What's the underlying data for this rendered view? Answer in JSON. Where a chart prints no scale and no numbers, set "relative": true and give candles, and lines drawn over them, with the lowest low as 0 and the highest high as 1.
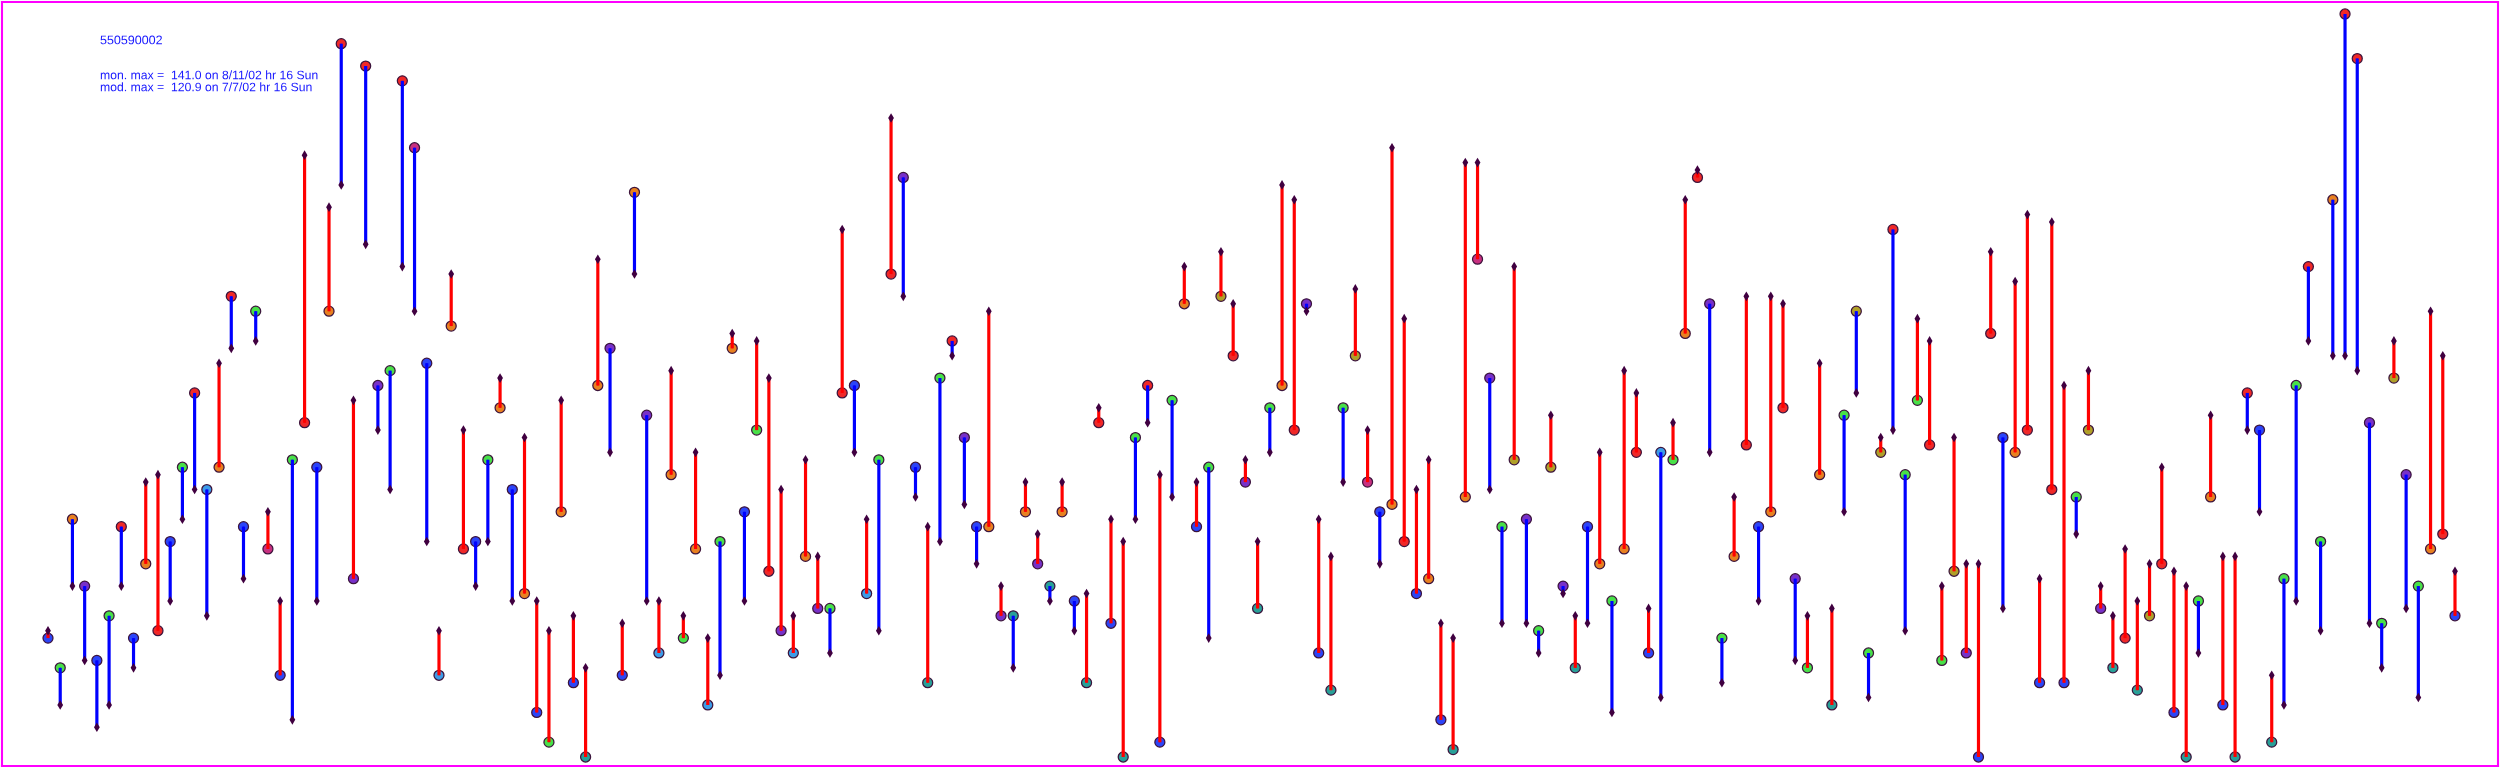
{
  "chart_data": {
    "type": "candlestick",
    "title": "550590002",
    "annotations": [
      "mon. max =  141.0 on 8/11/02 hr 16 Sun",
      "mod. max =  120.9 on 7/7/02 hr 16 Sun"
    ],
    "relative": true,
    "categories": [
      null,
      null,
      null,
      null,
      null,
      null,
      null,
      null,
      null,
      null,
      null,
      null,
      null,
      null,
      null,
      null,
      null,
      null,
      null,
      null,
      null,
      null,
      null,
      null,
      null,
      null,
      null,
      null,
      null,
      null,
      null,
      null,
      null,
      null,
      null,
      null,
      null,
      null,
      null,
      null,
      null,
      null,
      null,
      null,
      null,
      null,
      null,
      null,
      null,
      null,
      null,
      null,
      null,
      null,
      null,
      null,
      null,
      null,
      null,
      null,
      null,
      null,
      null,
      null,
      null,
      null,
      null,
      null,
      null,
      null,
      null,
      null,
      null,
      null,
      null,
      null,
      null,
      null,
      null,
      null,
      null,
      null,
      null,
      null,
      null,
      null,
      null,
      null,
      null,
      null,
      null,
      null,
      null,
      null,
      null,
      null,
      null,
      null,
      null,
      null,
      null,
      null,
      null,
      null,
      null,
      null,
      null,
      null,
      null,
      null,
      null,
      null,
      null,
      null,
      null,
      null,
      null,
      null,
      null,
      null,
      null,
      null,
      null,
      null,
      null,
      null,
      null,
      null,
      null,
      null,
      null,
      null,
      null,
      null,
      null,
      null,
      null,
      null,
      null,
      null,
      null,
      null,
      null,
      null,
      null,
      null,
      null,
      null,
      null,
      null,
      null,
      null,
      null,
      null,
      null,
      null,
      null,
      null,
      null,
      null,
      null,
      null,
      null,
      null,
      null,
      null,
      null,
      null,
      null,
      null,
      null,
      null,
      null,
      null,
      null,
      null,
      null,
      null,
      null,
      null,
      null,
      null,
      null,
      null,
      null,
      null,
      null,
      null,
      null,
      null,
      null,
      null,
      null,
      null,
      null,
      null,
      null,
      null
    ],
    "ohlc": [
      [
        0.16,
        0.17,
        0.16,
        0.17
      ],
      [
        0.12,
        0.12,
        0.07,
        0.07
      ],
      [
        0.32,
        0.32,
        0.23,
        0.23
      ],
      [
        0.23,
        0.23,
        0.13,
        0.13
      ],
      [
        0.13,
        0.13,
        0.04,
        0.04
      ],
      [
        0.19,
        0.19,
        0.07,
        0.07
      ],
      [
        0.31,
        0.31,
        0.23,
        0.23
      ],
      [
        0.16,
        0.16,
        0.12,
        0.12
      ],
      [
        0.26,
        0.37,
        0.26,
        0.37
      ],
      [
        0.17,
        0.38,
        0.17,
        0.38
      ],
      [
        0.29,
        0.29,
        0.21,
        0.21
      ],
      [
        0.39,
        0.39,
        0.32,
        0.32
      ],
      [
        0.49,
        0.49,
        0.36,
        0.36
      ],
      [
        0.36,
        0.36,
        0.19,
        0.19
      ],
      [
        0.39,
        0.53,
        0.39,
        0.53
      ],
      [
        0.62,
        0.62,
        0.55,
        0.55
      ],
      [
        0.31,
        0.31,
        0.24,
        0.24
      ],
      [
        0.6,
        0.6,
        0.56,
        0.56
      ],
      [
        0.28,
        0.33,
        0.28,
        0.33
      ],
      [
        0.11,
        0.21,
        0.11,
        0.21
      ],
      [
        0.4,
        0.4,
        0.05,
        0.05
      ],
      [
        0.45,
        0.81,
        0.45,
        0.81
      ],
      [
        0.39,
        0.39,
        0.21,
        0.21
      ],
      [
        0.6,
        0.74,
        0.6,
        0.74
      ],
      [
        0.96,
        0.96,
        0.77,
        0.77
      ],
      [
        0.24,
        0.48,
        0.24,
        0.48
      ],
      [
        0.93,
        0.93,
        0.69,
        0.69
      ],
      [
        0.5,
        0.5,
        0.44,
        0.44
      ],
      [
        0.52,
        0.52,
        0.36,
        0.36
      ],
      [
        0.91,
        0.91,
        0.66,
        0.66
      ],
      [
        0.82,
        0.82,
        0.6,
        0.6
      ],
      [
        0.53,
        0.53,
        0.29,
        0.29
      ],
      [
        0.11,
        0.17,
        0.11,
        0.17
      ],
      [
        0.58,
        0.65,
        0.58,
        0.65
      ],
      [
        0.28,
        0.44,
        0.28,
        0.44
      ],
      [
        0.29,
        0.29,
        0.23,
        0.23
      ],
      [
        0.4,
        0.4,
        0.29,
        0.29
      ],
      [
        0.47,
        0.51,
        0.47,
        0.51
      ],
      [
        0.36,
        0.36,
        0.21,
        0.21
      ],
      [
        0.22,
        0.43,
        0.22,
        0.43
      ],
      [
        0.06,
        0.21,
        0.06,
        0.21
      ],
      [
        0.02,
        0.17,
        0.02,
        0.17
      ],
      [
        0.33,
        0.48,
        0.33,
        0.48
      ],
      [
        0.1,
        0.19,
        0.1,
        0.19
      ],
      [
        0,
        0.12,
        0,
        0.12
      ],
      [
        0.5,
        0.67,
        0.5,
        0.67
      ],
      [
        0.55,
        0.55,
        0.41,
        0.41
      ],
      [
        0.11,
        0.18,
        0.11,
        0.18
      ],
      [
        0.76,
        0.76,
        0.65,
        0.65
      ],
      [
        0.46,
        0.46,
        0.21,
        0.21
      ],
      [
        0.14,
        0.21,
        0.14,
        0.21
      ],
      [
        0.38,
        0.52,
        0.38,
        0.52
      ],
      [
        0.16,
        0.19,
        0.16,
        0.19
      ],
      [
        0.28,
        0.41,
        0.28,
        0.41
      ],
      [
        0.07,
        0.16,
        0.07,
        0.16
      ],
      [
        0.29,
        0.29,
        0.11,
        0.11
      ],
      [
        0.55,
        0.57,
        0.55,
        0.57
      ],
      [
        0.33,
        0.33,
        0.21,
        0.21
      ],
      [
        0.44,
        0.56,
        0.44,
        0.56
      ],
      [
        0.25,
        0.51,
        0.25,
        0.51
      ],
      [
        0.17,
        0.36,
        0.17,
        0.36
      ],
      [
        0.14,
        0.19,
        0.14,
        0.19
      ],
      [
        0.27,
        0.4,
        0.27,
        0.4
      ],
      [
        0.2,
        0.27,
        0.2,
        0.27
      ],
      [
        0.2,
        0.2,
        0.14,
        0.14
      ],
      [
        0.49,
        0.71,
        0.49,
        0.71
      ],
      [
        0.5,
        0.5,
        0.41,
        0.41
      ],
      [
        0.22,
        0.32,
        0.22,
        0.32
      ],
      [
        0.4,
        0.4,
        0.17,
        0.17
      ],
      [
        0.65,
        0.86,
        0.65,
        0.86
      ],
      [
        0.78,
        0.78,
        0.62,
        0.62
      ],
      [
        0.39,
        0.39,
        0.35,
        0.35
      ],
      [
        0.1,
        0.31,
        0.1,
        0.31
      ],
      [
        0.51,
        0.51,
        0.29,
        0.29
      ],
      [
        0.56,
        0.56,
        0.54,
        0.54
      ],
      [
        0.43,
        0.43,
        0.34,
        0.34
      ],
      [
        0.31,
        0.31,
        0.26,
        0.26
      ],
      [
        0.31,
        0.6,
        0.31,
        0.6
      ],
      [
        0.19,
        0.23,
        0.19,
        0.23
      ],
      [
        0.19,
        0.19,
        0.12,
        0.12
      ],
      [
        0.33,
        0.37,
        0.33,
        0.37
      ],
      [
        0.26,
        0.3,
        0.26,
        0.3
      ],
      [
        0.23,
        0.23,
        0.21,
        0.21
      ],
      [
        0.33,
        0.37,
        0.33,
        0.37
      ],
      [
        0.21,
        0.21,
        0.17,
        0.17
      ],
      [
        0.1,
        0.22,
        0.1,
        0.22
      ],
      [
        0.45,
        0.47,
        0.45,
        0.47
      ],
      [
        0.18,
        0.32,
        0.18,
        0.32
      ],
      [
        0,
        0.29,
        0,
        0.29
      ],
      [
        0.43,
        0.43,
        0.32,
        0.32
      ],
      [
        0.5,
        0.5,
        0.45,
        0.45
      ],
      [
        0.02,
        0.38,
        0.02,
        0.38
      ],
      [
        0.48,
        0.48,
        0.35,
        0.35
      ],
      [
        0.61,
        0.66,
        0.61,
        0.66
      ],
      [
        0.31,
        0.37,
        0.31,
        0.37
      ],
      [
        0.39,
        0.39,
        0.16,
        0.16
      ],
      [
        0.62,
        0.68,
        0.62,
        0.68
      ],
      [
        0.54,
        0.61,
        0.54,
        0.61
      ],
      [
        0.37,
        0.4,
        0.37,
        0.4
      ],
      [
        0.2,
        0.29,
        0.2,
        0.29
      ],
      [
        0.47,
        0.47,
        0.41,
        0.41
      ],
      [
        0.5,
        0.77,
        0.5,
        0.77
      ],
      [
        0.44,
        0.75,
        0.44,
        0.75
      ],
      [
        0.61,
        0.61,
        0.6,
        0.6
      ],
      [
        0.14,
        0.32,
        0.14,
        0.32
      ],
      [
        0.09,
        0.27,
        0.09,
        0.27
      ],
      [
        0.47,
        0.47,
        0.37,
        0.37
      ],
      [
        0.54,
        0.63,
        0.54,
        0.63
      ],
      [
        0.37,
        0.44,
        0.37,
        0.44
      ],
      [
        0.33,
        0.33,
        0.26,
        0.26
      ],
      [
        0.34,
        0.82,
        0.34,
        0.82
      ],
      [
        0.29,
        0.59,
        0.29,
        0.59
      ],
      [
        0.22,
        0.36,
        0.22,
        0.36
      ],
      [
        0.24,
        0.4,
        0.24,
        0.4
      ],
      [
        0.05,
        0.18,
        0.05,
        0.18
      ],
      [
        0.01,
        0.16,
        0.01,
        0.16
      ],
      [
        0.35,
        0.8,
        0.35,
        0.8
      ],
      [
        0.67,
        0.8,
        0.67,
        0.8
      ],
      [
        0.51,
        0.51,
        0.36,
        0.36
      ],
      [
        0.31,
        0.31,
        0.18,
        0.18
      ],
      [
        0.4,
        0.66,
        0.4,
        0.66
      ],
      [
        0.32,
        0.32,
        0.18,
        0.18
      ],
      [
        0.17,
        0.17,
        0.14,
        0.14
      ],
      [
        0.39,
        0.46,
        0.39,
        0.46
      ],
      [
        0.23,
        0.23,
        0.22,
        0.22
      ],
      [
        0.12,
        0.19,
        0.12,
        0.19
      ],
      [
        0.31,
        0.31,
        0.18,
        0.18
      ],
      [
        0.26,
        0.41,
        0.26,
        0.41
      ],
      [
        0.21,
        0.21,
        0.06,
        0.06
      ],
      [
        0.28,
        0.52,
        0.28,
        0.52
      ],
      [
        0.41,
        0.49,
        0.41,
        0.49
      ],
      [
        0.14,
        0.2,
        0.14,
        0.2
      ],
      [
        0.41,
        0.41,
        0.08,
        0.08
      ],
      [
        0.4,
        0.45,
        0.4,
        0.45
      ],
      [
        0.57,
        0.75,
        0.57,
        0.75
      ],
      [
        0.78,
        0.79,
        0.78,
        0.79
      ],
      [
        0.61,
        0.61,
        0.41,
        0.41
      ],
      [
        0.16,
        0.16,
        0.1,
        0.1
      ],
      [
        0.27,
        0.35,
        0.27,
        0.35
      ],
      [
        0.42,
        0.62,
        0.42,
        0.62
      ],
      [
        0.31,
        0.31,
        0.21,
        0.21
      ],
      [
        0.33,
        0.62,
        0.33,
        0.62
      ],
      [
        0.47,
        0.61,
        0.47,
        0.61
      ],
      [
        0.24,
        0.24,
        0.13,
        0.13
      ],
      [
        0.12,
        0.19,
        0.12,
        0.19
      ],
      [
        0.38,
        0.53,
        0.38,
        0.53
      ],
      [
        0.07,
        0.2,
        0.07,
        0.2
      ],
      [
        0.46,
        0.46,
        0.33,
        0.33
      ],
      [
        0.6,
        0.6,
        0.49,
        0.49
      ],
      [
        0.14,
        0.14,
        0.08,
        0.08
      ],
      [
        0.41,
        0.43,
        0.41,
        0.43
      ],
      [
        0.71,
        0.71,
        0.44,
        0.44
      ],
      [
        0.38,
        0.38,
        0.17,
        0.17
      ],
      [
        0.48,
        0.59,
        0.48,
        0.59
      ],
      [
        0.42,
        0.56,
        0.42,
        0.56
      ],
      [
        0.13,
        0.23,
        0.13,
        0.23
      ],
      [
        0.25,
        0.43,
        0.25,
        0.43
      ],
      [
        0.14,
        0.26,
        0.14,
        0.26
      ],
      [
        0,
        0.26,
        0,
        0.26
      ],
      [
        0.57,
        0.68,
        0.57,
        0.68
      ],
      [
        0.43,
        0.43,
        0.2,
        0.2
      ],
      [
        0.41,
        0.64,
        0.41,
        0.64
      ],
      [
        0.44,
        0.73,
        0.44,
        0.73
      ],
      [
        0.1,
        0.24,
        0.1,
        0.24
      ],
      [
        0.36,
        0.72,
        0.36,
        0.72
      ],
      [
        0.1,
        0.5,
        0.1,
        0.5
      ],
      [
        0.35,
        0.35,
        0.3,
        0.3
      ],
      [
        0.44,
        0.52,
        0.44,
        0.52
      ],
      [
        0.2,
        0.23,
        0.2,
        0.23
      ],
      [
        0.12,
        0.19,
        0.12,
        0.19
      ],
      [
        0.16,
        0.28,
        0.16,
        0.28
      ],
      [
        0.09,
        0.21,
        0.09,
        0.21
      ],
      [
        0.19,
        0.26,
        0.19,
        0.26
      ],
      [
        0.26,
        0.39,
        0.26,
        0.39
      ],
      [
        0.06,
        0.25,
        0.06,
        0.25
      ],
      [
        0,
        0.23,
        0,
        0.23
      ],
      [
        0.21,
        0.21,
        0.14,
        0.14
      ],
      [
        0.35,
        0.46,
        0.35,
        0.46
      ],
      [
        0.07,
        0.27,
        0.07,
        0.27
      ],
      [
        0,
        0.27,
        0,
        0.27
      ],
      [
        0.49,
        0.49,
        0.44,
        0.44
      ],
      [
        0.44,
        0.44,
        0.33,
        0.33
      ],
      [
        0.02,
        0.11,
        0.02,
        0.11
      ],
      [
        0.24,
        0.24,
        0.07,
        0.07
      ],
      [
        0.5,
        0.5,
        0.21,
        0.21
      ],
      [
        0.66,
        0.66,
        0.56,
        0.56
      ],
      [
        0.29,
        0.29,
        0.17,
        0.17
      ],
      [
        0.75,
        0.75,
        0.54,
        0.54
      ],
      [
        1,
        1,
        0.54,
        0.54
      ],
      [
        0.94,
        0.94,
        0.52,
        0.52
      ],
      [
        0.45,
        0.45,
        0.18,
        0.18
      ],
      [
        0.18,
        0.18,
        0.12,
        0.12
      ],
      [
        0.51,
        0.56,
        0.51,
        0.56
      ],
      [
        0.38,
        0.38,
        0.2,
        0.2
      ],
      [
        0.23,
        0.23,
        0.08,
        0.08
      ],
      [
        0.28,
        0.6,
        0.28,
        0.6
      ],
      [
        0.3,
        0.54,
        0.3,
        0.54
      ],
      [
        0.19,
        0.25,
        0.19,
        0.25
      ]
    ],
    "colors": [
      "#ff0000",
      "#0000ff",
      "#0000ff",
      "#0000ff",
      "#0000ff",
      "#0000ff",
      "#0000ff",
      "#0000ff",
      "#ff0000",
      "#ff0000",
      "#0000ff",
      "#0000ff",
      "#0000ff",
      "#0000ff",
      "#ff0000",
      "#0000ff",
      "#0000ff",
      "#0000ff",
      "#ff0000",
      "#ff0000",
      "#0000ff",
      "#ff0000",
      "#0000ff",
      "#ff0000",
      "#0000ff",
      "#ff0000",
      "#0000ff",
      "#0000ff",
      "#0000ff",
      "#0000ff",
      "#0000ff",
      "#0000ff",
      "#ff0000",
      "#ff0000",
      "#ff0000",
      "#0000ff",
      "#0000ff",
      "#ff0000",
      "#0000ff",
      "#ff0000",
      "#ff0000",
      "#ff0000",
      "#ff0000",
      "#ff0000",
      "#ff0000",
      "#ff0000",
      "#0000ff",
      "#ff0000",
      "#0000ff",
      "#0000ff",
      "#ff0000",
      "#ff0000",
      "#ff0000",
      "#ff0000",
      "#ff0000",
      "#0000ff",
      "#ff0000",
      "#0000ff",
      "#ff0000",
      "#ff0000",
      "#ff0000",
      "#ff0000",
      "#ff0000",
      "#ff0000",
      "#0000ff",
      "#ff0000",
      "#0000ff",
      "#ff0000",
      "#0000ff",
      "#ff0000",
      "#0000ff",
      "#0000ff",
      "#ff0000",
      "#0000ff",
      "#0000ff",
      "#0000ff",
      "#0000ff",
      "#ff0000",
      "#ff0000",
      "#0000ff",
      "#ff0000",
      "#ff0000",
      "#0000ff",
      "#ff0000",
      "#0000ff",
      "#ff0000",
      "#ff0000",
      "#ff0000",
      "#ff0000",
      "#0000ff",
      "#0000ff",
      "#ff0000",
      "#0000ff",
      "#ff0000",
      "#ff0000",
      "#0000ff",
      "#ff0000",
      "#ff0000",
      "#ff0000",
      "#ff0000",
      "#0000ff",
      "#ff0000",
      "#ff0000",
      "#0000ff",
      "#ff0000",
      "#ff0000",
      "#0000ff",
      "#ff0000",
      "#ff0000",
      "#0000ff",
      "#ff0000",
      "#ff0000",
      "#ff0000",
      "#ff0000",
      "#ff0000",
      "#ff0000",
      "#ff0000",
      "#ff0000",
      "#0000ff",
      "#0000ff",
      "#ff0000",
      "#0000ff",
      "#0000ff",
      "#ff0000",
      "#0000ff",
      "#ff0000",
      "#0000ff",
      "#ff0000",
      "#0000ff",
      "#ff0000",
      "#ff0000",
      "#ff0000",
      "#0000ff",
      "#ff0000",
      "#ff0000",
      "#ff0000",
      "#0000ff",
      "#0000ff",
      "#ff0000",
      "#ff0000",
      "#0000ff",
      "#ff0000",
      "#ff0000",
      "#0000ff",
      "#ff0000",
      "#ff0000",
      "#ff0000",
      "#0000ff",
      "#0000ff",
      "#0000ff",
      "#ff0000",
      "#0000ff",
      "#0000ff",
      "#ff0000",
      "#ff0000",
      "#ff0000",
      "#ff0000",
      "#ff0000",
      "#ff0000",
      "#ff0000",
      "#0000ff",
      "#ff0000",
      "#ff0000",
      "#ff0000",
      "#ff0000",
      "#ff0000",
      "#0000ff",
      "#ff0000",
      "#ff0000",
      "#ff0000",
      "#ff0000",
      "#ff0000",
      "#ff0000",
      "#ff0000",
      "#ff0000",
      "#ff0000",
      "#0000ff",
      "#ff0000",
      "#ff0000",
      "#ff0000",
      "#0000ff",
      "#0000ff",
      "#ff0000",
      "#0000ff",
      "#0000ff",
      "#0000ff",
      "#0000ff",
      "#0000ff",
      "#0000ff",
      "#0000ff",
      "#0000ff",
      "#0000ff",
      "#ff0000",
      "#0000ff",
      "#0000ff",
      "#ff0000",
      "#ff0000",
      "#ff0000"
    ],
    "series": [
      {
        "type": "scatter",
        "marker": "circle",
        "values": [
          0.16,
          0.12,
          0.32,
          0.23,
          0.13,
          0.19,
          0.31,
          0.16,
          0.26,
          0.17,
          0.29,
          0.39,
          0.49,
          0.36,
          0.39,
          0.62,
          0.31,
          0.6,
          0.28,
          0.11,
          0.4,
          0.45,
          0.39,
          0.6,
          0.96,
          0.24,
          0.93,
          0.5,
          0.52,
          0.91,
          0.82,
          0.53,
          0.11,
          0.58,
          0.28,
          0.29,
          0.4,
          0.47,
          0.36,
          0.22,
          0.06,
          0.02,
          0.33,
          0.1,
          0,
          0.5,
          0.55,
          0.11,
          0.76,
          0.46,
          0.14,
          0.38,
          0.16,
          0.28,
          0.07,
          0.29,
          0.55,
          0.33,
          0.44,
          0.25,
          0.17,
          0.14,
          0.27,
          0.2,
          0.2,
          0.49,
          0.5,
          0.22,
          0.4,
          0.65,
          0.78,
          0.39,
          0.1,
          0.51,
          0.56,
          0.43,
          0.31,
          0.31,
          0.19,
          0.19,
          0.33,
          0.26,
          0.23,
          0.33,
          0.21,
          0.1,
          0.45,
          0.18,
          0,
          0.43,
          0.5,
          0.02,
          0.48,
          0.61,
          0.31,
          0.39,
          0.62,
          0.54,
          0.37,
          0.2,
          0.47,
          0.5,
          0.44,
          0.61,
          0.14,
          0.09,
          0.47,
          0.54,
          0.37,
          0.33,
          0.34,
          0.29,
          0.22,
          0.24,
          0.05,
          0.01,
          0.35,
          0.67,
          0.51,
          0.31,
          0.4,
          0.32,
          0.17,
          0.39,
          0.23,
          0.12,
          0.31,
          0.26,
          0.21,
          0.28,
          0.41,
          0.14,
          0.41,
          0.4,
          0.57,
          0.78,
          0.61,
          0.16,
          0.27,
          0.42,
          0.31,
          0.33,
          0.47,
          0.24,
          0.12,
          0.38,
          0.07,
          0.46,
          0.6,
          0.14,
          0.41,
          0.71,
          0.38,
          0.48,
          0.42,
          0.13,
          0.25,
          0.14,
          0,
          0.57,
          0.43,
          0.41,
          0.44,
          0.1,
          0.36,
          0.1,
          0.35,
          0.44,
          0.2,
          0.12,
          0.16,
          0.09,
          0.19,
          0.26,
          0.06,
          0,
          0.21,
          0.35,
          0.07,
          0,
          0.49,
          0.44,
          0.02,
          0.24,
          0.5,
          0.66,
          0.29,
          0.75,
          1,
          0.94,
          0.45,
          0.18,
          0.51,
          0.38,
          0.23,
          0.28,
          0.3,
          0.19
        ],
        "colors": [
          "#2c44f8",
          "#48e048",
          "#e88020",
          "#7830c8",
          "#2c44f8",
          "#48e048",
          "#f02828",
          "#2c44f8",
          "#e88020",
          "#f02828",
          "#2c44f8",
          "#48e048",
          "#f02828",
          "#3c9ce8",
          "#e88020",
          "#f02828",
          "#2c44f8",
          "#48e048",
          "#c83080",
          "#2c44f8",
          "#48e048",
          "#f02828",
          "#2c44f8",
          "#e88020",
          "#f02828",
          "#7830c8",
          "#f02828",
          "#7830c8",
          "#48e048",
          "#f02828",
          "#c83080",
          "#2c44f8",
          "#3c9ce8",
          "#e88020",
          "#f02828",
          "#2c44f8",
          "#48e048",
          "#e88020",
          "#2c44f8",
          "#e88020",
          "#2c44f8",
          "#48e048",
          "#e88020",
          "#2c44f8",
          "#28a098",
          "#e88020",
          "#7830c8",
          "#2c44f8",
          "#e88020",
          "#7830c8",
          "#3c9ce8",
          "#e88020",
          "#48e048",
          "#e88020",
          "#3c9ce8",
          "#48e048",
          "#e88020",
          "#2c44f8",
          "#48e048",
          "#f02828",
          "#7830c8",
          "#3c9ce8",
          "#e88020",
          "#7830c8",
          "#48e048",
          "#f02828",
          "#2c44f8",
          "#3c9ce8",
          "#48e048",
          "#f02828",
          "#7830c8",
          "#2c44f8",
          "#28a098",
          "#48e048",
          "#f02828",
          "#7830c8",
          "#2c44f8",
          "#e88020",
          "#7830c8",
          "#28a098",
          "#e88020",
          "#7830c8",
          "#28a098",
          "#e88020",
          "#2c44f8",
          "#28a098",
          "#f02828",
          "#2c44f8",
          "#28a098",
          "#48e048",
          "#f02828",
          "#2c44f8",
          "#48e048",
          "#e88020",
          "#2c44f8",
          "#48e048",
          "#b0a028",
          "#f02828",
          "#7830c8",
          "#28a098",
          "#48e048",
          "#e88020",
          "#f02828",
          "#7830c8",
          "#2c44f8",
          "#28a098",
          "#48e048",
          "#b0a028",
          "#c83080",
          "#2c44f8",
          "#e88020",
          "#f02828",
          "#2c44f8",
          "#e88020",
          "#2c44f8",
          "#28a098",
          "#e88020",
          "#c83080",
          "#7830c8",
          "#48e048",
          "#b0a028",
          "#7830c8",
          "#48e048",
          "#b0a028",
          "#7830c8",
          "#28a098",
          "#2c44f8",
          "#e88020",
          "#48e048",
          "#e88020",
          "#f02828",
          "#2c44f8",
          "#3c9ce8",
          "#48e048",
          "#e88020",
          "#f02828",
          "#7830c8",
          "#48e048",
          "#e88020",
          "#f02828",
          "#2c44f8",
          "#e88020",
          "#f02828",
          "#7830c8",
          "#48e048",
          "#e88020",
          "#28a098",
          "#48e048",
          "#b0a028",
          "#48e048",
          "#b0a028",
          "#f02828",
          "#48e048",
          "#48e048",
          "#f02828",
          "#48e048",
          "#b0a028",
          "#7830c8",
          "#2c44f8",
          "#f02828",
          "#2c44f8",
          "#e88020",
          "#f02828",
          "#2c44f8",
          "#f02828",
          "#2c44f8",
          "#48e048",
          "#b0a028",
          "#7830c8",
          "#28a098",
          "#f02828",
          "#28a098",
          "#b0a028",
          "#f02828",
          "#2c44f8",
          "#28a098",
          "#48e048",
          "#e88020",
          "#2c44f8",
          "#28a098",
          "#f02828",
          "#2c44f8",
          "#28a098",
          "#48e048",
          "#48e048",
          "#f02828",
          "#48e048",
          "#e88020",
          "#f02828",
          "#f02828",
          "#7830c8",
          "#48e048",
          "#b0a028",
          "#7830c8",
          "#48e048",
          "#e88020",
          "#f02828",
          "#2c44f8"
        ]
      },
      {
        "type": "scatter",
        "marker": "diamond",
        "color": "#400040",
        "values": [
          0.17,
          0.07,
          0.23,
          0.13,
          0.04,
          0.07,
          0.23,
          0.12,
          0.37,
          0.38,
          0.21,
          0.32,
          0.36,
          0.19,
          0.53,
          0.55,
          0.24,
          0.56,
          0.33,
          0.21,
          0.05,
          0.81,
          0.21,
          0.74,
          0.77,
          0.48,
          0.69,
          0.44,
          0.36,
          0.66,
          0.6,
          0.29,
          0.17,
          0.65,
          0.44,
          0.23,
          0.29,
          0.51,
          0.21,
          0.43,
          0.21,
          0.17,
          0.48,
          0.19,
          0.12,
          0.67,
          0.41,
          0.18,
          0.65,
          0.21,
          0.21,
          0.52,
          0.19,
          0.41,
          0.16,
          0.11,
          0.57,
          0.21,
          0.56,
          0.51,
          0.36,
          0.19,
          0.4,
          0.27,
          0.14,
          0.71,
          0.41,
          0.32,
          0.17,
          0.86,
          0.62,
          0.35,
          0.31,
          0.29,
          0.54,
          0.34,
          0.26,
          0.6,
          0.23,
          0.12,
          0.37,
          0.3,
          0.21,
          0.37,
          0.17,
          0.22,
          0.47,
          0.32,
          0.29,
          0.32,
          0.45,
          0.38,
          0.35,
          0.66,
          0.37,
          0.16,
          0.68,
          0.61,
          0.4,
          0.29,
          0.41,
          0.77,
          0.75,
          0.6,
          0.32,
          0.27,
          0.37,
          0.63,
          0.44,
          0.26,
          0.82,
          0.59,
          0.36,
          0.4,
          0.18,
          0.16,
          0.8,
          0.8,
          0.36,
          0.18,
          0.66,
          0.18,
          0.14,
          0.46,
          0.22,
          0.19,
          0.18,
          0.41,
          0.06,
          0.52,
          0.49,
          0.2,
          0.08,
          0.45,
          0.75,
          0.79,
          0.41,
          0.1,
          0.35,
          0.62,
          0.21,
          0.62,
          0.61,
          0.13,
          0.19,
          0.53,
          0.2,
          0.33,
          0.49,
          0.08,
          0.43,
          0.44,
          0.17,
          0.59,
          0.56,
          0.23,
          0.43,
          0.26,
          0.26,
          0.68,
          0.2,
          0.64,
          0.73,
          0.24,
          0.72,
          0.5,
          0.3,
          0.52,
          0.23,
          0.19,
          0.28,
          0.21,
          0.26,
          0.39,
          0.25,
          0.23,
          0.14,
          0.46,
          0.27,
          0.27,
          0.44,
          0.33,
          0.11,
          0.07,
          0.21,
          0.56,
          0.17,
          0.54,
          0.54,
          0.52,
          0.18,
          0.12,
          0.56,
          0.2,
          0.08,
          0.6,
          0.54,
          0.25
        ]
      }
    ]
  }
}
